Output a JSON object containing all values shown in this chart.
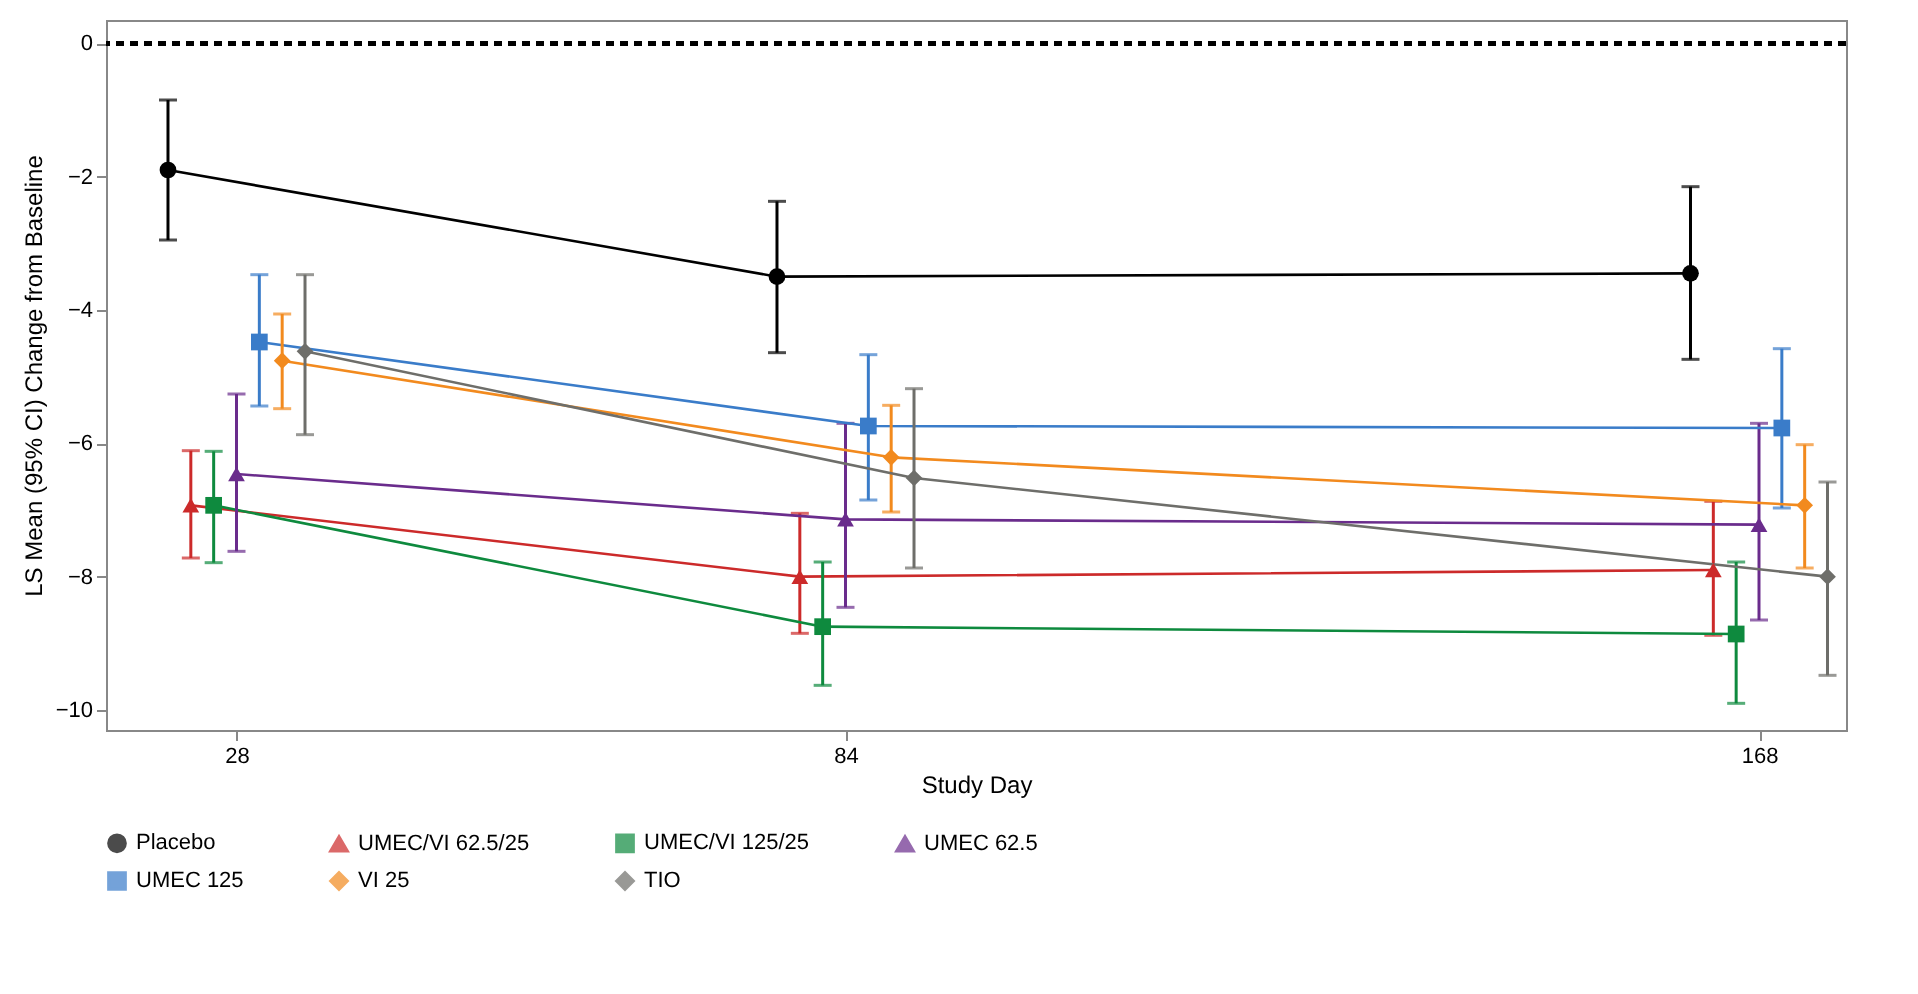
{
  "chart_data": {
    "type": "line",
    "xlabel": "Study Day",
    "ylabel": "LS Mean (95% CI) Change from Baseline",
    "xlim": [
      16,
      176
    ],
    "xticks": [
      28,
      84,
      168
    ],
    "ylim": [
      -10.3,
      0.35
    ],
    "yticks": [
      0,
      -2,
      -4,
      -6,
      -8,
      -10
    ],
    "grid": false,
    "legend": "bottom",
    "ref_lines": [
      {
        "axis": "y",
        "value": 0,
        "color": "#000000",
        "line_style": "dashed"
      }
    ],
    "series": [
      {
        "name": "Placebo",
        "color": "#000000",
        "marker": "circle",
        "x": [
          21.7,
          77.7,
          161.7
        ],
        "values": [
          -1.9,
          -3.5,
          -3.45
        ],
        "errors": [
          [
            -2.95,
            -0.85
          ],
          [
            -4.64,
            -2.37
          ],
          [
            -4.74,
            -2.15
          ]
        ]
      },
      {
        "name": "UMEC/VI 62.5/25",
        "color": "#cc2a2a",
        "marker": "triangle",
        "x": [
          23.8,
          79.8,
          163.8
        ],
        "values": [
          -6.93,
          -8.0,
          -7.9
        ],
        "errors": [
          [
            -7.72,
            -6.11
          ],
          [
            -8.85,
            -7.05
          ],
          [
            -8.88,
            -6.87
          ]
        ]
      },
      {
        "name": "UMEC/VI 125/25",
        "color": "#0e8a3e",
        "marker": "square",
        "x": [
          25.9,
          81.9,
          165.9
        ],
        "values": [
          -6.93,
          -8.75,
          -8.86
        ],
        "errors": [
          [
            -7.79,
            -6.12
          ],
          [
            -9.63,
            -7.78
          ],
          [
            -9.9,
            -7.78
          ]
        ]
      },
      {
        "name": "UMEC 62.5",
        "color": "#6a2c8c",
        "marker": "triangle",
        "x": [
          28,
          84,
          168
        ],
        "values": [
          -6.46,
          -7.14,
          -7.22
        ],
        "errors": [
          [
            -7.62,
            -5.26
          ],
          [
            -8.46,
            -5.7
          ],
          [
            -8.65,
            -5.7
          ]
        ]
      },
      {
        "name": "UMEC 125",
        "color": "#3a7cc9",
        "marker": "square",
        "x": [
          30.1,
          86.1,
          170.1
        ],
        "values": [
          -4.48,
          -5.74,
          -5.77
        ],
        "errors": [
          [
            -5.44,
            -3.47
          ],
          [
            -6.85,
            -4.67
          ],
          [
            -6.97,
            -4.58
          ]
        ]
      },
      {
        "name": "VI 25",
        "color": "#f28a1e",
        "marker": "diamond",
        "x": [
          32.2,
          88.2,
          172.2
        ],
        "values": [
          -4.76,
          -6.21,
          -6.93
        ],
        "errors": [
          [
            -5.48,
            -4.06
          ],
          [
            -7.03,
            -5.43
          ],
          [
            -7.87,
            -6.02
          ]
        ]
      },
      {
        "name": "TIO",
        "color": "#6e6e6a",
        "marker": "diamond",
        "x": [
          34.3,
          90.3,
          174.3
        ],
        "values": [
          -4.62,
          -6.52,
          -8.0
        ],
        "errors": [
          [
            -5.87,
            -3.47
          ],
          [
            -7.87,
            -5.18
          ],
          [
            -9.48,
            -6.58
          ]
        ]
      }
    ]
  }
}
